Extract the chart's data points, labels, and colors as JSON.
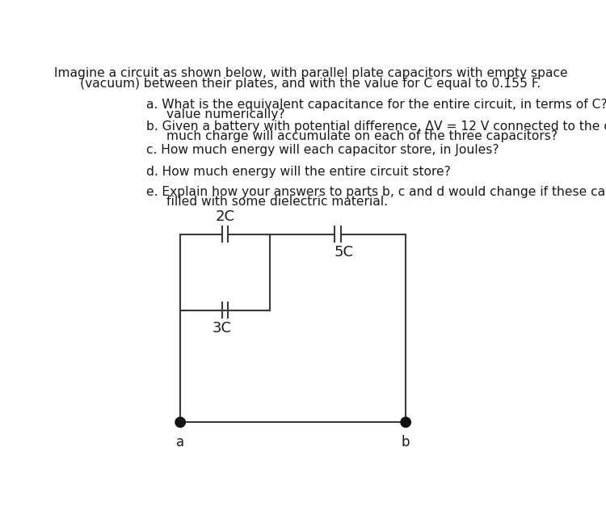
{
  "title_line1": "Imagine a circuit as shown below, with parallel plate capacitors with empty space",
  "title_line2": "(vacuum) between their plates, and with the value for C equal to 0.155 F.",
  "qa1": "a. What is the equivalent capacitance for the entire circuit, in terms of C? What is  this",
  "qa2": "value numerically?",
  "qb1": "b. Given a battery with potential difference, ΔV = 12 V connected to the circuit, how",
  "qb2": "much charge will accumulate on each of the three capacitors?",
  "qc": "c. How much energy will each capacitor store, in Joules?",
  "qd": "d. How much energy will the entire circuit store?",
  "qe1": "e. Explain how your answers to parts b, c and d would change if these capacitors  were",
  "qe2": "filled with some dielectric material.",
  "cap_2C_label": "2C",
  "cap_3C_label": "3C",
  "cap_5C_label": "5C",
  "node_a_label": "a",
  "node_b_label": "b",
  "line_color": "#3a3a3a",
  "text_color": "#1a1a1a",
  "bg_color": "#ffffff",
  "node_fill_color": "#111111",
  "title_fontsize": 11.2,
  "body_fontsize": 11.2,
  "label_fontsize": 13
}
